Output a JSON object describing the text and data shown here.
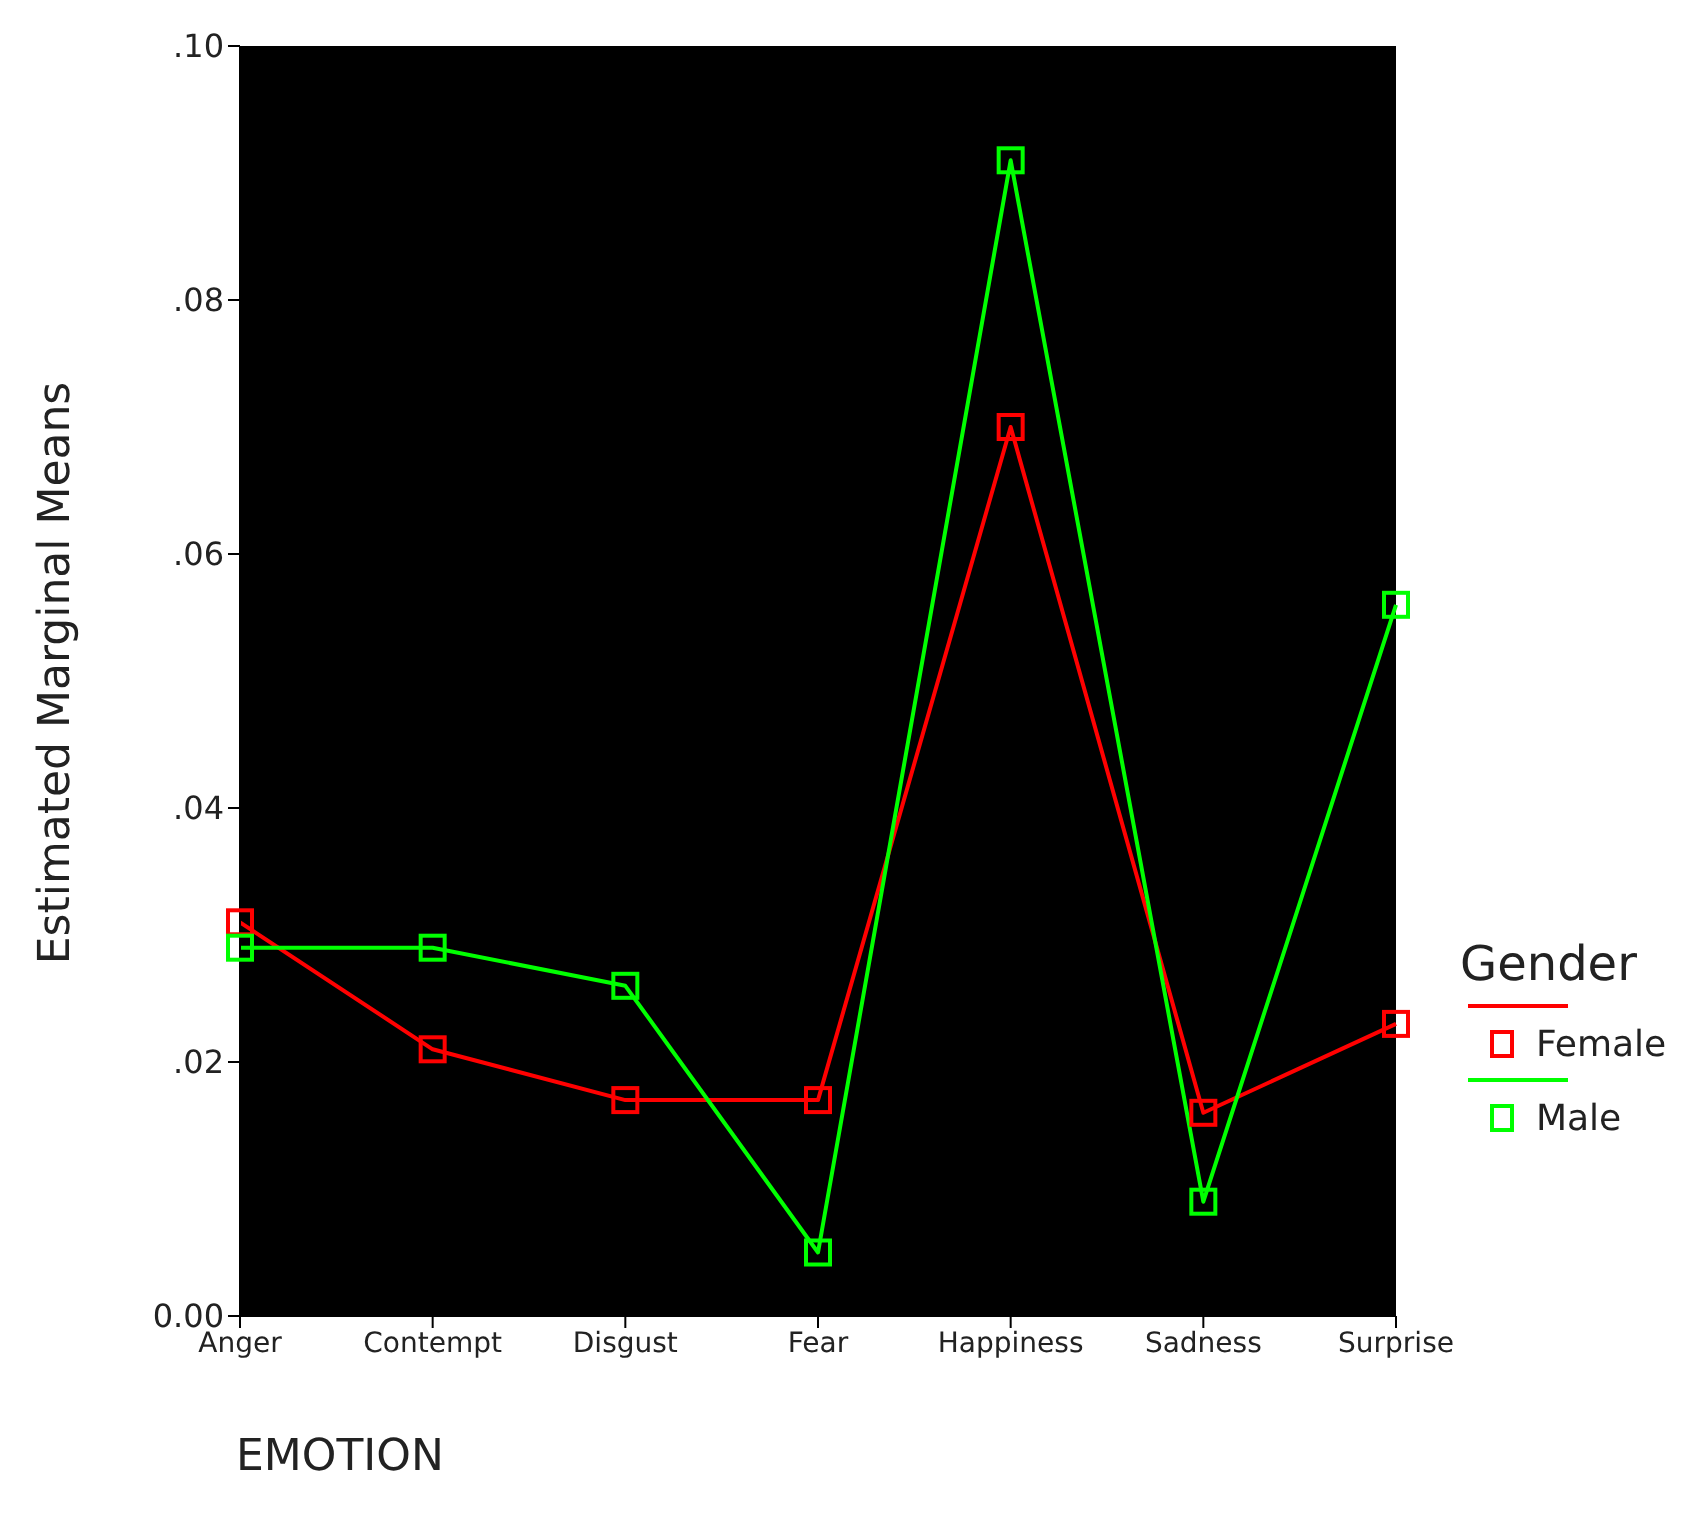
{
  "chart_data": {
    "type": "line",
    "xlabel": "EMOTION",
    "ylabel": "Estimated Marginal Means",
    "legend_title": "Gender",
    "categories": [
      "Anger",
      "Contempt",
      "Disgust",
      "Fear",
      "Happiness",
      "Sadness",
      "Surprise"
    ],
    "series": [
      {
        "name": "Female",
        "color": "#ff0000",
        "values": [
          0.031,
          0.021,
          0.017,
          0.017,
          0.07,
          0.016,
          0.023
        ]
      },
      {
        "name": "Male",
        "color": "#00ff00",
        "values": [
          0.029,
          0.029,
          0.026,
          0.005,
          0.091,
          0.009,
          0.056
        ]
      }
    ],
    "ylim": [
      0,
      0.1
    ],
    "yticks": [
      {
        "value": 0,
        "label": "0.00"
      },
      {
        "value": 0.02,
        "label": ".02"
      },
      {
        "value": 0.04,
        "label": ".04"
      },
      {
        "value": 0.06,
        "label": ".06"
      },
      {
        "value": 0.08,
        "label": ".08"
      },
      {
        "value": 0.1,
        "label": ".10"
      }
    ],
    "grid": false,
    "legend": "right",
    "marker": "square",
    "line_style": "solid"
  }
}
